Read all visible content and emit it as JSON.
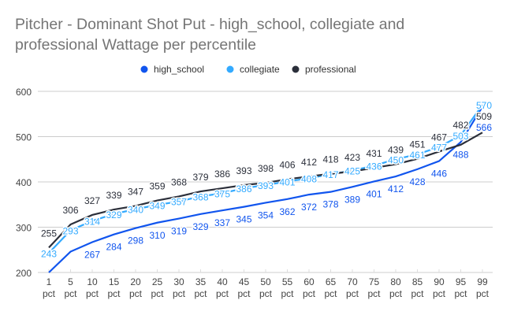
{
  "chart_data": {
    "type": "line",
    "title": "Pitcher - Dominant Shot Put - high_school, collegiate and professional Wattage per percentile",
    "categories": [
      "1 pct",
      "5 pct",
      "10 pct",
      "15 pct",
      "20 pct",
      "25 pct",
      "30 pct",
      "35 pct",
      "40 pct",
      "45 pct",
      "50 pct",
      "55 pct",
      "60 pct",
      "65 pct",
      "70 pct",
      "75 pct",
      "80 pct",
      "85 pct",
      "90 pct",
      "95 pct",
      "99 pct"
    ],
    "ylim": [
      200,
      600
    ],
    "yticks": [
      200,
      300,
      400,
      500,
      600
    ],
    "grid": true,
    "legend": "top",
    "series": [
      {
        "name": "high_school",
        "color": "#1155ee",
        "values": [
          200,
          246,
          267,
          284,
          298,
          310,
          319,
          329,
          337,
          345,
          354,
          362,
          372,
          378,
          389,
          401,
          412,
          428,
          446,
          488,
          566
        ],
        "labels": [
          null,
          null,
          "267",
          "284",
          "298",
          "310",
          "319",
          "329",
          "337",
          "345",
          "354",
          "362",
          "372",
          "378",
          "389",
          "401",
          "412",
          "428",
          "446",
          "488",
          "566"
        ]
      },
      {
        "name": "collegiate",
        "color": "#33aaff",
        "values": [
          243,
          293,
          314,
          329,
          340,
          349,
          357,
          368,
          375,
          386,
          393,
          401,
          408,
          417,
          425,
          436,
          450,
          461,
          477,
          503,
          570
        ],
        "labels": [
          "243",
          "293",
          "314",
          "329",
          "340",
          "349",
          "357",
          "368",
          "375",
          "386",
          "393",
          "401",
          "408",
          "417",
          "425",
          "436",
          "450",
          "461",
          "477",
          "503",
          "570"
        ]
      },
      {
        "name": "professional",
        "color": "#2b2f3a",
        "values": [
          255,
          306,
          327,
          339,
          347,
          359,
          368,
          379,
          386,
          393,
          398,
          406,
          412,
          418,
          423,
          431,
          439,
          451,
          467,
          482,
          509
        ],
        "labels": [
          "255",
          "306",
          "327",
          "339",
          "347",
          "359",
          "368",
          "379",
          "386",
          "393",
          "398",
          "406",
          "412",
          "418",
          "423",
          "431",
          "439",
          "451",
          "467",
          "482",
          "509"
        ]
      }
    ]
  }
}
